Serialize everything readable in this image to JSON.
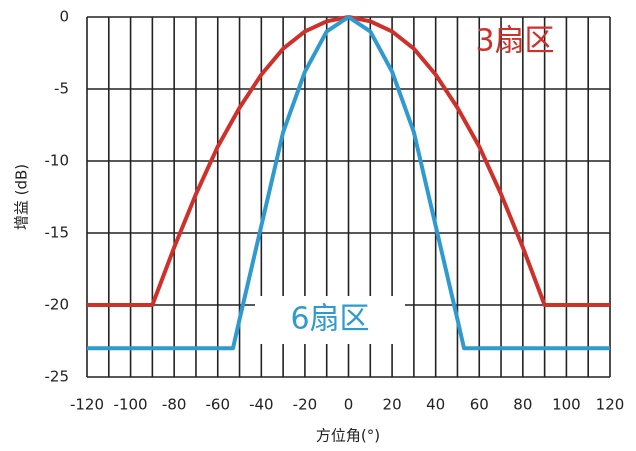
{
  "chart_data": {
    "type": "line",
    "x_label": "方位角(°)",
    "y_label": "增益 (dB)",
    "xlim": [
      -120,
      120
    ],
    "ylim": [
      -25,
      0
    ],
    "xticks": [
      -120,
      -100,
      -80,
      -60,
      -40,
      -20,
      0,
      20,
      40,
      60,
      80,
      100,
      120
    ],
    "minor_xticks": [
      -110,
      -90,
      -70,
      -50,
      -30,
      -10,
      10,
      30,
      50,
      70,
      90,
      110
    ],
    "yticks": [
      -25,
      -20,
      -15,
      -10,
      -5,
      0
    ],
    "grid": true,
    "series": [
      {
        "name": "3扇区",
        "color": "#d0302a",
        "x": [
          -120,
          -90,
          -80,
          -70,
          -60,
          -50,
          -40,
          -30,
          -20,
          -10,
          0,
          10,
          20,
          30,
          40,
          50,
          60,
          70,
          80,
          90,
          120
        ],
        "values": [
          -20,
          -20,
          -16,
          -12.3,
          -9,
          -6.3,
          -4,
          -2.2,
          -1,
          -0.3,
          0,
          -0.3,
          -1,
          -2.2,
          -4,
          -6.3,
          -9,
          -12.3,
          -16,
          -20,
          -20
        ]
      },
      {
        "name": "6扇区",
        "color": "#2e9ad0",
        "x": [
          -120,
          -53,
          -50,
          -40,
          -30,
          -20,
          -10,
          0,
          10,
          20,
          30,
          40,
          50,
          53,
          120
        ],
        "values": [
          -23,
          -23,
          -21,
          -14.5,
          -8,
          -3.8,
          -1,
          0,
          -1,
          -3.8,
          -8,
          -14.5,
          -21,
          -23,
          -23
        ]
      }
    ]
  }
}
